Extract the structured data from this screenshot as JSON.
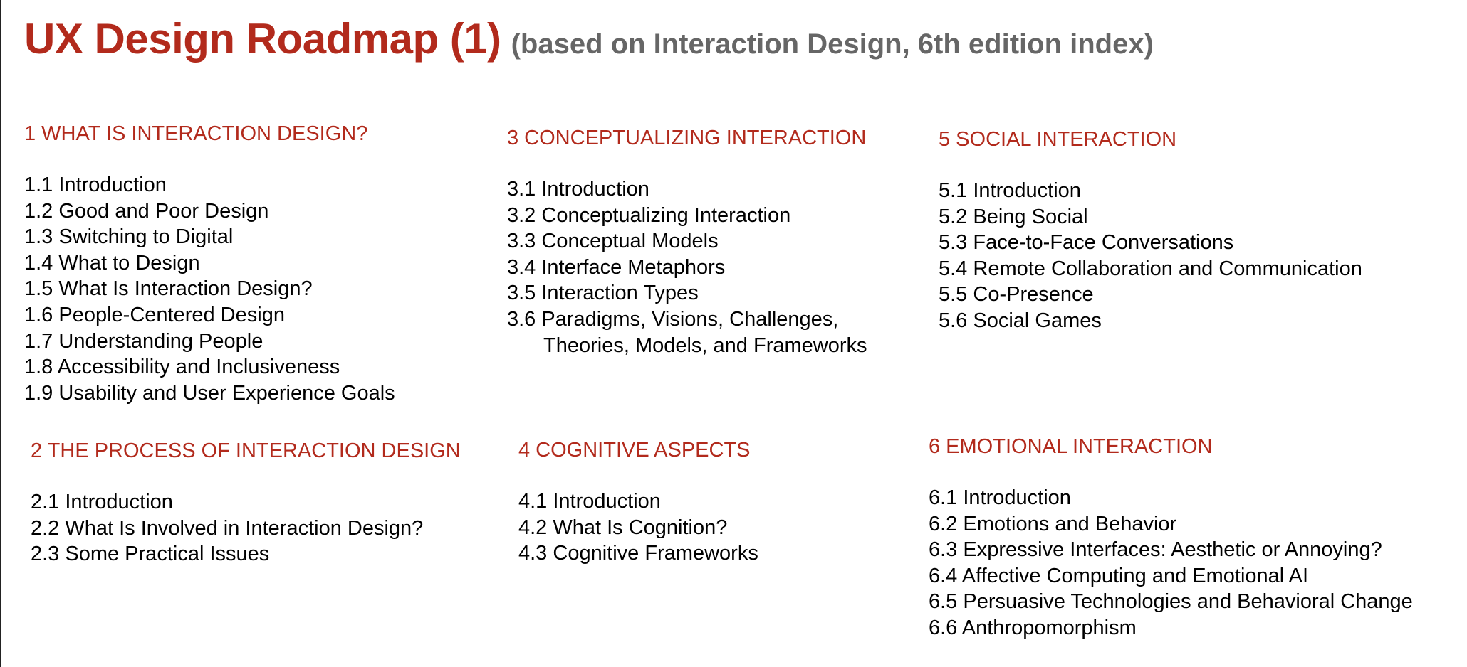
{
  "title": {
    "main": "UX Design Roadmap (1)",
    "sub": "(based on Interaction Design, 6th edition index)"
  },
  "colors": {
    "accent": "#b22a1c",
    "subtitle": "#666666",
    "text": "#000000"
  },
  "sections": [
    {
      "heading": "1 WHAT IS INTERACTION DESIGN?",
      "items": [
        "1.1 Introduction",
        "1.2 Good and Poor Design",
        "1.3 Switching to Digital",
        "1.4 What to Design",
        "1.5 What Is Interaction Design?",
        "1.6 People-Centered Design",
        "1.7 Understanding People",
        "1.8 Accessibility and Inclusiveness",
        "1.9 Usability and User Experience Goals"
      ]
    },
    {
      "heading": "2 THE PROCESS OF INTERACTION DESIGN",
      "items": [
        "2.1 Introduction",
        "2.2 What Is Involved in Interaction Design?",
        "2.3 Some Practical Issues"
      ]
    },
    {
      "heading": "3 CONCEPTUALIZING INTERACTION",
      "items": [
        "3.1 Introduction",
        "3.2 Conceptualizing Interaction",
        "3.3 Conceptual Models",
        "3.4 Interface Metaphors",
        "3.5 Interaction Types",
        "3.6 Paradigms, Visions, Challenges,"
      ],
      "continuation": "Theories, Models, and Frameworks"
    },
    {
      "heading": "4 COGNITIVE ASPECTS",
      "items": [
        "4.1 Introduction",
        "4.2 What Is Cognition?",
        "4.3 Cognitive Frameworks"
      ]
    },
    {
      "heading": "5 SOCIAL INTERACTION",
      "items": [
        "5.1 Introduction",
        "5.2 Being Social",
        "5.3 Face-to-Face Conversations",
        "5.4 Remote Collaboration and Communication",
        "5.5 Co-Presence",
        "5.6 Social Games"
      ]
    },
    {
      "heading": "6 EMOTIONAL INTERACTION",
      "items": [
        "6.1 Introduction",
        "6.2 Emotions and Behavior",
        "6.3 Expressive Interfaces: Aesthetic or Annoying?",
        "6.4 Affective Computing and Emotional AI",
        "6.5 Persuasive Technologies and Behavioral Change",
        "6.6 Anthropomorphism"
      ]
    }
  ]
}
